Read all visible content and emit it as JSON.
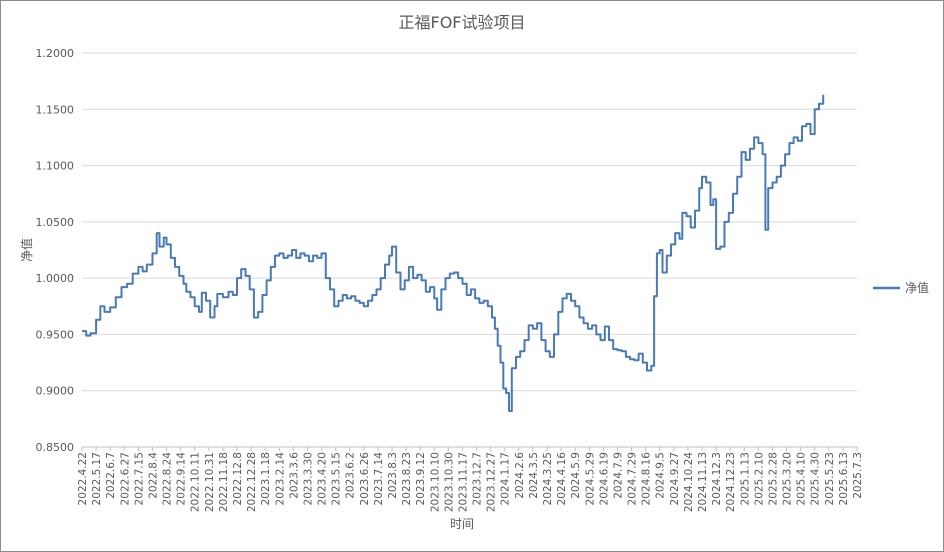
{
  "chart_data": {
    "type": "line",
    "title": "正福FOF试验项目",
    "xlabel": "时间",
    "ylabel": "净值",
    "legend_position": "right",
    "grid": true,
    "ylim": [
      0.85,
      1.2
    ],
    "y_ticks": [
      "0.8500",
      "0.9000",
      "0.9500",
      "1.0000",
      "1.0500",
      "1.1000",
      "1.1500",
      "1.2000"
    ],
    "x_tick_labels": [
      "2022.4.22",
      "2022.5.17",
      "2022.6.7",
      "2022.6.27",
      "2022.7.15",
      "2022.8.4",
      "2022.8.24",
      "2022.9.14",
      "2022.10.11",
      "2022.10.31",
      "2022.11.18",
      "2022.12.8",
      "2022.12.28",
      "2023.1.18",
      "2023.2.14",
      "2023.3.6",
      "2023.3.30",
      "2023.4.20",
      "2023.5.15",
      "2023.6.2",
      "2023.6.26",
      "2023.7.14",
      "2023.8.3",
      "2023.8.23",
      "2023.9.12",
      "2023.10.10",
      "2023.10.30",
      "2023.11.17",
      "2023.12.7",
      "2023.12.27",
      "2024.1.17",
      "2024.2.6",
      "2024.3.5",
      "2024.3.25",
      "2024.4.16",
      "2024.5.9",
      "2024.5.29",
      "2024.6.19",
      "2024.7.9",
      "2024.7.29",
      "2024.8.16",
      "2024.9.5",
      "2024.9.27",
      "2024.10.24",
      "2024.11.13",
      "2024.12.3",
      "2024.12.23",
      "2025.1.13",
      "2025.2.10",
      "2025.2.28",
      "2025.3.20",
      "2025.4.10",
      "2025.4.30",
      "2025.5.23",
      "2025.6.13",
      "2025.7.3"
    ],
    "series": [
      {
        "name": "净值",
        "color": "#4a7ab5",
        "points": [
          [
            0,
            0.953
          ],
          [
            0.3,
            0.949
          ],
          [
            0.6,
            0.951
          ],
          [
            1.0,
            0.963
          ],
          [
            1.3,
            0.975
          ],
          [
            1.6,
            0.97
          ],
          [
            2.0,
            0.974
          ],
          [
            2.4,
            0.983
          ],
          [
            2.8,
            0.992
          ],
          [
            3.2,
            0.995
          ],
          [
            3.6,
            1.004
          ],
          [
            4.0,
            1.01
          ],
          [
            4.3,
            1.006
          ],
          [
            4.6,
            1.012
          ],
          [
            5.0,
            1.022
          ],
          [
            5.3,
            1.04
          ],
          [
            5.5,
            1.028
          ],
          [
            5.8,
            1.036
          ],
          [
            6.0,
            1.03
          ],
          [
            6.3,
            1.018
          ],
          [
            6.6,
            1.01
          ],
          [
            6.9,
            1.002
          ],
          [
            7.2,
            0.995
          ],
          [
            7.4,
            0.988
          ],
          [
            7.7,
            0.983
          ],
          [
            8.0,
            0.975
          ],
          [
            8.3,
            0.97
          ],
          [
            8.5,
            0.987
          ],
          [
            8.8,
            0.98
          ],
          [
            9.1,
            0.965
          ],
          [
            9.4,
            0.975
          ],
          [
            9.6,
            0.986
          ],
          [
            10.0,
            0.983
          ],
          [
            10.4,
            0.988
          ],
          [
            10.7,
            0.985
          ],
          [
            11.0,
            1.0
          ],
          [
            11.3,
            1.008
          ],
          [
            11.6,
            1.002
          ],
          [
            11.9,
            0.99
          ],
          [
            12.2,
            0.965
          ],
          [
            12.5,
            0.97
          ],
          [
            12.8,
            0.985
          ],
          [
            13.1,
            0.998
          ],
          [
            13.4,
            1.01
          ],
          [
            13.7,
            1.02
          ],
          [
            14.0,
            1.022
          ],
          [
            14.3,
            1.018
          ],
          [
            14.6,
            1.02
          ],
          [
            14.9,
            1.025
          ],
          [
            15.2,
            1.018
          ],
          [
            15.5,
            1.022
          ],
          [
            15.8,
            1.02
          ],
          [
            16.1,
            1.015
          ],
          [
            16.4,
            1.02
          ],
          [
            16.7,
            1.018
          ],
          [
            17.0,
            1.022
          ],
          [
            17.3,
            1.0
          ],
          [
            17.6,
            0.99
          ],
          [
            17.9,
            0.975
          ],
          [
            18.2,
            0.98
          ],
          [
            18.5,
            0.985
          ],
          [
            18.8,
            0.982
          ],
          [
            19.1,
            0.984
          ],
          [
            19.4,
            0.98
          ],
          [
            19.7,
            0.978
          ],
          [
            20.0,
            0.975
          ],
          [
            20.3,
            0.98
          ],
          [
            20.6,
            0.985
          ],
          [
            20.9,
            0.99
          ],
          [
            21.2,
            1.0
          ],
          [
            21.5,
            1.012
          ],
          [
            21.8,
            1.02
          ],
          [
            22.0,
            1.028
          ],
          [
            22.3,
            1.005
          ],
          [
            22.6,
            0.99
          ],
          [
            22.9,
            0.998
          ],
          [
            23.2,
            1.01
          ],
          [
            23.5,
            1.0
          ],
          [
            23.8,
            1.003
          ],
          [
            24.1,
            0.998
          ],
          [
            24.4,
            0.988
          ],
          [
            24.7,
            0.992
          ],
          [
            25.0,
            0.982
          ],
          [
            25.2,
            0.972
          ],
          [
            25.5,
            0.99
          ],
          [
            25.8,
            1.0
          ],
          [
            26.1,
            1.004
          ],
          [
            26.4,
            1.005
          ],
          [
            26.7,
            1.0
          ],
          [
            27.0,
            0.995
          ],
          [
            27.3,
            0.985
          ],
          [
            27.6,
            0.99
          ],
          [
            27.9,
            0.982
          ],
          [
            28.2,
            0.978
          ],
          [
            28.5,
            0.98
          ],
          [
            28.8,
            0.975
          ],
          [
            29.1,
            0.965
          ],
          [
            29.3,
            0.955
          ],
          [
            29.5,
            0.94
          ],
          [
            29.7,
            0.925
          ],
          [
            29.9,
            0.902
          ],
          [
            30.1,
            0.898
          ],
          [
            30.3,
            0.882
          ],
          [
            30.5,
            0.92
          ],
          [
            30.8,
            0.93
          ],
          [
            31.1,
            0.935
          ],
          [
            31.4,
            0.945
          ],
          [
            31.7,
            0.958
          ],
          [
            32.0,
            0.955
          ],
          [
            32.3,
            0.96
          ],
          [
            32.6,
            0.945
          ],
          [
            32.9,
            0.935
          ],
          [
            33.2,
            0.93
          ],
          [
            33.5,
            0.95
          ],
          [
            33.8,
            0.97
          ],
          [
            34.1,
            0.982
          ],
          [
            34.4,
            0.986
          ],
          [
            34.7,
            0.98
          ],
          [
            35.0,
            0.975
          ],
          [
            35.3,
            0.965
          ],
          [
            35.6,
            0.96
          ],
          [
            35.9,
            0.955
          ],
          [
            36.2,
            0.958
          ],
          [
            36.5,
            0.95
          ],
          [
            36.8,
            0.945
          ],
          [
            37.1,
            0.957
          ],
          [
            37.4,
            0.945
          ],
          [
            37.7,
            0.937
          ],
          [
            38.0,
            0.936
          ],
          [
            38.3,
            0.935
          ],
          [
            38.6,
            0.93
          ],
          [
            38.9,
            0.928
          ],
          [
            39.2,
            0.927
          ],
          [
            39.5,
            0.933
          ],
          [
            39.8,
            0.925
          ],
          [
            40.1,
            0.918
          ],
          [
            40.4,
            0.922
          ],
          [
            40.6,
            0.984
          ],
          [
            40.8,
            1.022
          ],
          [
            41.0,
            1.025
          ],
          [
            41.2,
            1.005
          ],
          [
            41.5,
            1.02
          ],
          [
            41.8,
            1.03
          ],
          [
            42.1,
            1.04
          ],
          [
            42.4,
            1.035
          ],
          [
            42.6,
            1.058
          ],
          [
            42.9,
            1.055
          ],
          [
            43.2,
            1.045
          ],
          [
            43.5,
            1.06
          ],
          [
            43.8,
            1.08
          ],
          [
            44.0,
            1.09
          ],
          [
            44.3,
            1.085
          ],
          [
            44.6,
            1.065
          ],
          [
            44.8,
            1.07
          ],
          [
            45.0,
            1.026
          ],
          [
            45.3,
            1.028
          ],
          [
            45.6,
            1.05
          ],
          [
            45.9,
            1.058
          ],
          [
            46.2,
            1.075
          ],
          [
            46.5,
            1.09
          ],
          [
            46.8,
            1.112
          ],
          [
            47.1,
            1.105
          ],
          [
            47.4,
            1.115
          ],
          [
            47.7,
            1.125
          ],
          [
            48.0,
            1.12
          ],
          [
            48.3,
            1.11
          ],
          [
            48.5,
            1.043
          ],
          [
            48.7,
            1.08
          ],
          [
            49.0,
            1.085
          ],
          [
            49.3,
            1.09
          ],
          [
            49.6,
            1.1
          ],
          [
            49.9,
            1.11
          ],
          [
            50.2,
            1.12
          ],
          [
            50.5,
            1.125
          ],
          [
            50.8,
            1.122
          ],
          [
            51.1,
            1.135
          ],
          [
            51.4,
            1.137
          ],
          [
            51.7,
            1.128
          ],
          [
            52.0,
            1.15
          ],
          [
            52.3,
            1.155
          ],
          [
            52.6,
            1.163
          ]
        ]
      }
    ]
  }
}
